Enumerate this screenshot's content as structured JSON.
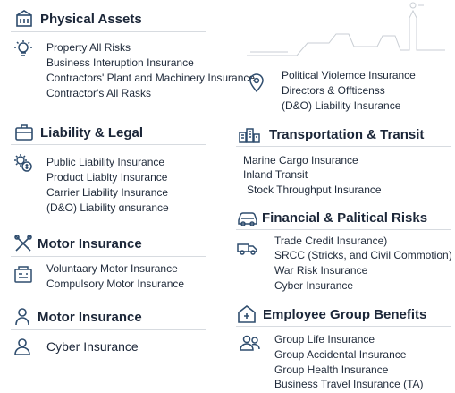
{
  "physical_assets": {
    "heading": "Physical Assets",
    "items": [
      "Property All Risks",
      "Business Interuption Insurance",
      "Contractors' Plant and Machinery Insurance",
      "Contractor's All Rasks"
    ],
    "icon": "building-icon"
  },
  "political": {
    "items": [
      "Political Violemce Insurance",
      "Directors & Offticenss",
      "(D&O) Liability Insurance"
    ],
    "icon": "map-pin-icon"
  },
  "liability_legal": {
    "heading": "Liability & Legal",
    "items": [
      "Public Liability Insurance",
      "Product Liablty Insurance",
      "Carrier Liability Insurance",
      "(D&O) Liability ɑnsurance"
    ],
    "icon": "briefcase-icon"
  },
  "transportation": {
    "heading": "Transportation & Transit",
    "items": [
      "Marine Cargo Insurance",
      "Inland Transit",
      "Stock Throughput Insurance"
    ],
    "icon": "city-icon"
  },
  "financial": {
    "heading": "Financial & Palitical Risks",
    "items": [
      "Trade Credit Insurance)",
      "SRCC (Stricks, and Civil Commotion)",
      "War Risk Insurance",
      "Cyber Insurance"
    ],
    "icon": "car-icon"
  },
  "motor_1": {
    "heading": "Motor Insurance",
    "items": [
      "Voluntaary Motor Insurance",
      "Compulsory Motor Insurance"
    ],
    "icon": "tools-icon"
  },
  "motor_2": {
    "heading": "Motor Insurance",
    "icon": "person-icon"
  },
  "cyber": {
    "label": "Cyber Insurance",
    "icon": "user-icon"
  },
  "employee": {
    "heading": "Employee Group Benefits",
    "items": [
      "Group Life Insurance",
      "Group Accidental Insurance",
      "Group Health Insurance",
      "Business Travel Insurance (TA)"
    ],
    "icon": "hospital-icon"
  }
}
